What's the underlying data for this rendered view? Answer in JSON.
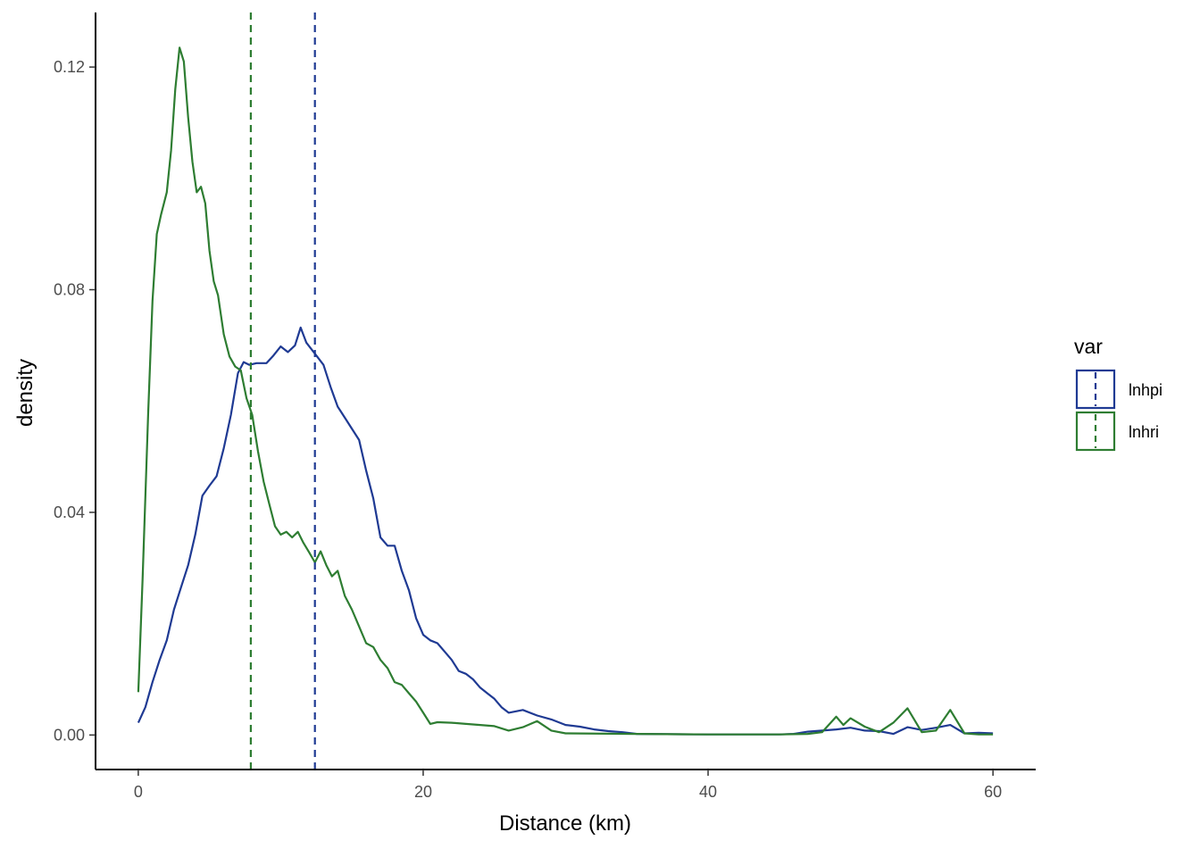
{
  "chart_data": {
    "type": "line",
    "subtype": "density",
    "title": "",
    "xlabel": "Distance (km)",
    "ylabel": "density",
    "xlim": [
      -3,
      63
    ],
    "ylim": [
      -0.0062,
      0.1298
    ],
    "x_ticks": [
      0,
      20,
      40,
      60
    ],
    "x_tick_labels": [
      "0",
      "20",
      "40",
      "60"
    ],
    "y_ticks": [
      0,
      0.04,
      0.08,
      0.12
    ],
    "y_tick_labels": [
      "0.00",
      "0.04",
      "0.08",
      "0.12"
    ],
    "grid": false,
    "legend": {
      "title": "var",
      "position": "right",
      "entries": [
        "lnhpi",
        "lnhri"
      ]
    },
    "series": [
      {
        "name": "lnhpi",
        "color": "#1F3A93",
        "mean_line_x": 12.4,
        "points": [
          [
            0,
            0.0022
          ],
          [
            0.5,
            0.005
          ],
          [
            1,
            0.0095
          ],
          [
            1.5,
            0.0135
          ],
          [
            2,
            0.017
          ],
          [
            2.5,
            0.0225
          ],
          [
            3,
            0.0265
          ],
          [
            3.5,
            0.0305
          ],
          [
            4,
            0.036
          ],
          [
            4.5,
            0.043
          ],
          [
            5,
            0.0448
          ],
          [
            5.5,
            0.0465
          ],
          [
            6,
            0.0515
          ],
          [
            6.5,
            0.0575
          ],
          [
            7,
            0.065
          ],
          [
            7.4,
            0.067
          ],
          [
            7.8,
            0.0665
          ],
          [
            8.3,
            0.0668
          ],
          [
            9,
            0.0668
          ],
          [
            9.5,
            0.0682
          ],
          [
            10,
            0.0698
          ],
          [
            10.5,
            0.0688
          ],
          [
            11,
            0.07
          ],
          [
            11.4,
            0.0732
          ],
          [
            11.8,
            0.0705
          ],
          [
            12.4,
            0.0685
          ],
          [
            13,
            0.0665
          ],
          [
            13.5,
            0.0625
          ],
          [
            14,
            0.059
          ],
          [
            14.5,
            0.057
          ],
          [
            15,
            0.055
          ],
          [
            15.5,
            0.053
          ],
          [
            16,
            0.0475
          ],
          [
            16.5,
            0.0425
          ],
          [
            17,
            0.0355
          ],
          [
            17.5,
            0.034
          ],
          [
            18,
            0.034
          ],
          [
            18.5,
            0.0295
          ],
          [
            19,
            0.026
          ],
          [
            19.5,
            0.021
          ],
          [
            20,
            0.018
          ],
          [
            20.5,
            0.017
          ],
          [
            21,
            0.0165
          ],
          [
            21.5,
            0.015
          ],
          [
            22,
            0.0135
          ],
          [
            22.5,
            0.0115
          ],
          [
            23,
            0.011
          ],
          [
            23.5,
            0.01
          ],
          [
            24,
            0.0085
          ],
          [
            24.5,
            0.0075
          ],
          [
            25,
            0.0065
          ],
          [
            25.5,
            0.005
          ],
          [
            26,
            0.004
          ],
          [
            27,
            0.0045
          ],
          [
            28,
            0.0035
          ],
          [
            29,
            0.0028
          ],
          [
            30,
            0.0018
          ],
          [
            31,
            0.0015
          ],
          [
            32,
            0.001
          ],
          [
            33,
            0.0007
          ],
          [
            34,
            0.0005
          ],
          [
            35,
            0.0002
          ],
          [
            40,
            0.0001
          ],
          [
            45,
            0.0001
          ],
          [
            46,
            0.0002
          ],
          [
            47,
            0.0006
          ],
          [
            48,
            0.0008
          ],
          [
            49,
            0.001
          ],
          [
            50,
            0.0013
          ],
          [
            51,
            0.0008
          ],
          [
            52,
            0.0007
          ],
          [
            53,
            0.0002
          ],
          [
            54,
            0.0014
          ],
          [
            55,
            0.0009
          ],
          [
            56,
            0.0013
          ],
          [
            57,
            0.0018
          ],
          [
            58,
            0.0003
          ],
          [
            59,
            0.0004
          ],
          [
            60,
            0.0003
          ]
        ]
      },
      {
        "name": "lnhri",
        "color": "#2E7D32",
        "mean_line_x": 7.9,
        "points": [
          [
            0,
            0.0077
          ],
          [
            0.3,
            0.028
          ],
          [
            0.7,
            0.058
          ],
          [
            1,
            0.078
          ],
          [
            1.3,
            0.09
          ],
          [
            1.6,
            0.0935
          ],
          [
            2,
            0.0975
          ],
          [
            2.3,
            0.105
          ],
          [
            2.6,
            0.116
          ],
          [
            2.9,
            0.1235
          ],
          [
            3.2,
            0.121
          ],
          [
            3.5,
            0.111
          ],
          [
            3.8,
            0.103
          ],
          [
            4.1,
            0.0975
          ],
          [
            4.4,
            0.0985
          ],
          [
            4.7,
            0.0955
          ],
          [
            5,
            0.087
          ],
          [
            5.3,
            0.0815
          ],
          [
            5.6,
            0.079
          ],
          [
            6,
            0.072
          ],
          [
            6.4,
            0.068
          ],
          [
            6.8,
            0.0662
          ],
          [
            7.2,
            0.0655
          ],
          [
            7.6,
            0.0605
          ],
          [
            8,
            0.0575
          ],
          [
            8.4,
            0.051
          ],
          [
            8.8,
            0.0455
          ],
          [
            9.2,
            0.0415
          ],
          [
            9.6,
            0.0375
          ],
          [
            10,
            0.036
          ],
          [
            10.4,
            0.0365
          ],
          [
            10.8,
            0.0355
          ],
          [
            11.2,
            0.0365
          ],
          [
            11.6,
            0.0345
          ],
          [
            12,
            0.0328
          ],
          [
            12.4,
            0.031
          ],
          [
            12.8,
            0.033
          ],
          [
            13.2,
            0.0305
          ],
          [
            13.6,
            0.0285
          ],
          [
            14,
            0.0295
          ],
          [
            14.5,
            0.025
          ],
          [
            15,
            0.0225
          ],
          [
            15.5,
            0.0195
          ],
          [
            16,
            0.0165
          ],
          [
            16.5,
            0.0158
          ],
          [
            17,
            0.0135
          ],
          [
            17.5,
            0.012
          ],
          [
            18,
            0.0095
          ],
          [
            18.5,
            0.009
          ],
          [
            19,
            0.0075
          ],
          [
            19.5,
            0.006
          ],
          [
            20,
            0.004
          ],
          [
            20.5,
            0.002
          ],
          [
            21,
            0.0023
          ],
          [
            22,
            0.0022
          ],
          [
            23,
            0.002
          ],
          [
            24,
            0.0018
          ],
          [
            25,
            0.0016
          ],
          [
            26,
            0.0008
          ],
          [
            27,
            0.0014
          ],
          [
            28,
            0.0025
          ],
          [
            29,
            0.0008
          ],
          [
            30,
            0.0003
          ],
          [
            35,
            0.0002
          ],
          [
            40,
            0.0001
          ],
          [
            45,
            0.0001
          ],
          [
            47,
            0.0002
          ],
          [
            48,
            0.0005
          ],
          [
            49,
            0.0033
          ],
          [
            49.5,
            0.0018
          ],
          [
            50,
            0.003
          ],
          [
            51,
            0.0015
          ],
          [
            52,
            0.0005
          ],
          [
            53,
            0.0022
          ],
          [
            54,
            0.0048
          ],
          [
            55,
            0.0005
          ],
          [
            56,
            0.0008
          ],
          [
            57,
            0.0045
          ],
          [
            58,
            0.0003
          ],
          [
            59,
            0.0001
          ],
          [
            60,
            0.0001
          ]
        ]
      }
    ]
  }
}
